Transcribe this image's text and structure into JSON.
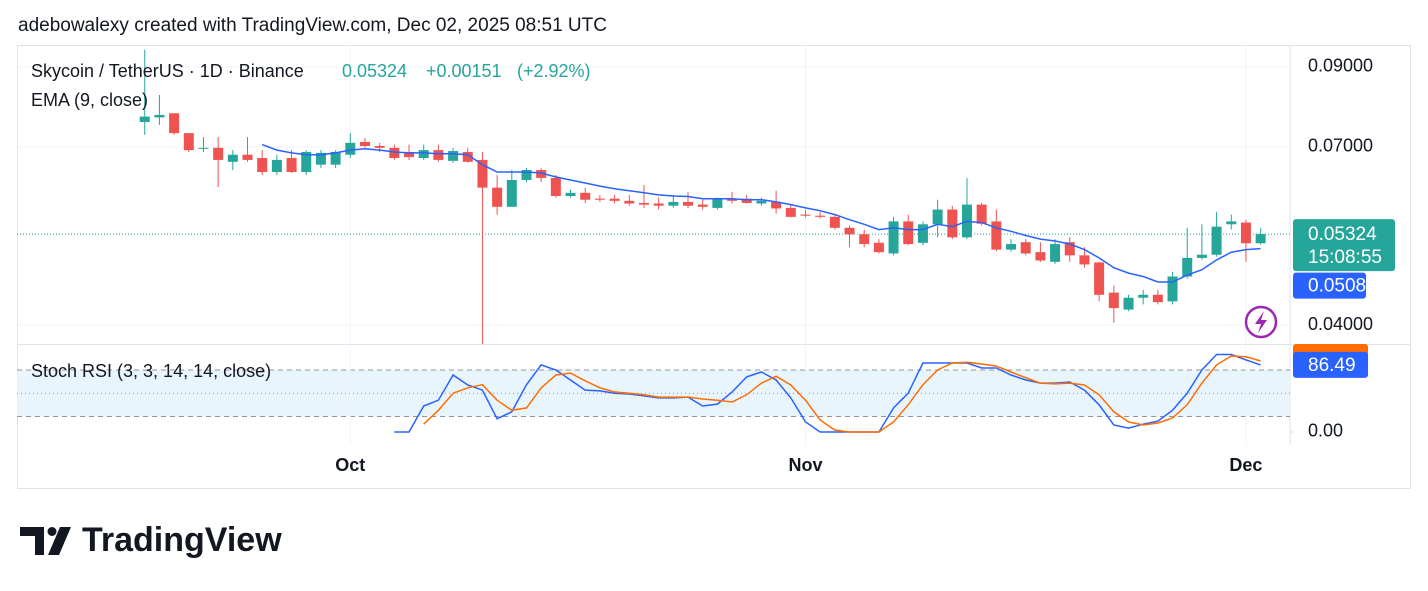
{
  "header": {
    "attribution": "adebowalexy created with TradingView.com, Dec 02, 2025 08:51 UTC"
  },
  "logo": {
    "text": "TradingView"
  },
  "chart_data": [
    {
      "type": "candlestick",
      "title": "Skycoin / TetherUS · 1D · Binance",
      "change": "+0.00151",
      "change_pct": "(+2.92%)",
      "countdown": "15:08:55",
      "log_scale": true,
      "grid": true,
      "up_color": "#26a69a",
      "down_color": "#ef5350",
      "xlim": [
        -8.7,
        78
      ],
      "ylim": [
        0.0377,
        0.0964
      ],
      "yticks": [
        {
          "value": 0.09,
          "label": "0.09000"
        },
        {
          "value": 0.07,
          "label": "0.07000"
        },
        {
          "value": 0.04,
          "label": "0.04000"
        }
      ],
      "candles": [
        [
          0.0757,
          0.095,
          0.0727,
          0.077
        ],
        [
          0.0768,
          0.0824,
          0.075,
          0.0774
        ],
        [
          0.0778,
          0.0778,
          0.0727,
          0.0731
        ],
        [
          0.0731,
          0.0731,
          0.0689,
          0.0693
        ],
        [
          0.0696,
          0.0722,
          0.0689,
          0.0698
        ],
        [
          0.0698,
          0.0722,
          0.0617,
          0.0672
        ],
        [
          0.0668,
          0.0693,
          0.0651,
          0.0683
        ],
        [
          0.0683,
          0.0722,
          0.0668,
          0.0672
        ],
        [
          0.0676,
          0.0693,
          0.0641,
          0.0647
        ],
        [
          0.0647,
          0.0683,
          0.0641,
          0.0672
        ],
        [
          0.0676,
          0.0693,
          0.0645,
          0.0647
        ],
        [
          0.0647,
          0.0693,
          0.0641,
          0.0689
        ],
        [
          0.0662,
          0.0693,
          0.0655,
          0.0687
        ],
        [
          0.0662,
          0.0693,
          0.0655,
          0.0689
        ],
        [
          0.0683,
          0.0731,
          0.0676,
          0.0709
        ],
        [
          0.0711,
          0.072,
          0.0698,
          0.0702
        ],
        [
          0.0702,
          0.0709,
          0.0689,
          0.0698
        ],
        [
          0.0698,
          0.0705,
          0.0672,
          0.0676
        ],
        [
          0.0689,
          0.0705,
          0.0672,
          0.0678
        ],
        [
          0.0676,
          0.0705,
          0.0672,
          0.0693
        ],
        [
          0.0693,
          0.0705,
          0.0668,
          0.0672
        ],
        [
          0.067,
          0.0698,
          0.0666,
          0.0691
        ],
        [
          0.0689,
          0.0698,
          0.0666,
          0.0668
        ],
        [
          0.0672,
          0.0689,
          0.0377,
          0.0616
        ],
        [
          0.0616,
          0.0641,
          0.0566,
          0.058
        ],
        [
          0.058,
          0.0651,
          0.058,
          0.0631
        ],
        [
          0.0631,
          0.0655,
          0.0627,
          0.0651
        ],
        [
          0.0651,
          0.0655,
          0.0627,
          0.0635
        ],
        [
          0.0635,
          0.0641,
          0.0597,
          0.06
        ],
        [
          0.06,
          0.0612,
          0.0597,
          0.0606
        ],
        [
          0.0606,
          0.0616,
          0.0587,
          0.0593
        ],
        [
          0.0595,
          0.0602,
          0.0589,
          0.0593
        ],
        [
          0.0595,
          0.0602,
          0.0586,
          0.0591
        ],
        [
          0.0591,
          0.0602,
          0.0582,
          0.0586
        ],
        [
          0.0587,
          0.0621,
          0.0578,
          0.0584
        ],
        [
          0.0586,
          0.0597,
          0.0575,
          0.0582
        ],
        [
          0.0582,
          0.0602,
          0.0578,
          0.0589
        ],
        [
          0.0589,
          0.0608,
          0.0578,
          0.0582
        ],
        [
          0.0584,
          0.0593,
          0.0575,
          0.058
        ],
        [
          0.0578,
          0.0597,
          0.0575,
          0.0595
        ],
        [
          0.0595,
          0.0608,
          0.0586,
          0.0591
        ],
        [
          0.0595,
          0.0602,
          0.0586,
          0.0587
        ],
        [
          0.0586,
          0.0597,
          0.0582,
          0.0591
        ],
        [
          0.0589,
          0.061,
          0.0568,
          0.0577
        ],
        [
          0.0578,
          0.0584,
          0.0561,
          0.0562
        ],
        [
          0.0566,
          0.0575,
          0.0561,
          0.0564
        ],
        [
          0.0564,
          0.0571,
          0.0559,
          0.0562
        ],
        [
          0.0562,
          0.0566,
          0.054,
          0.0543
        ],
        [
          0.0543,
          0.0547,
          0.0511,
          0.0532
        ],
        [
          0.0532,
          0.054,
          0.0511,
          0.0516
        ],
        [
          0.0518,
          0.0524,
          0.0501,
          0.0503
        ],
        [
          0.0501,
          0.0562,
          0.0498,
          0.0554
        ],
        [
          0.0554,
          0.0566,
          0.0514,
          0.0516
        ],
        [
          0.0518,
          0.0554,
          0.0514,
          0.0549
        ],
        [
          0.0549,
          0.0593,
          0.0527,
          0.0575
        ],
        [
          0.0575,
          0.0582,
          0.0524,
          0.0527
        ],
        [
          0.0527,
          0.0635,
          0.0524,
          0.0584
        ],
        [
          0.0584,
          0.0587,
          0.0547,
          0.055
        ],
        [
          0.0554,
          0.0575,
          0.0504,
          0.0507
        ],
        [
          0.0507,
          0.0524,
          0.0504,
          0.0516
        ],
        [
          0.0519,
          0.0524,
          0.0498,
          0.0501
        ],
        [
          0.0503,
          0.0519,
          0.0488,
          0.049
        ],
        [
          0.0488,
          0.0524,
          0.0485,
          0.0516
        ],
        [
          0.0519,
          0.0527,
          0.0488,
          0.0498
        ],
        [
          0.0498,
          0.0511,
          0.0479,
          0.0484
        ],
        [
          0.0487,
          0.0488,
          0.0431,
          0.044
        ],
        [
          0.0443,
          0.0453,
          0.0403,
          0.0422
        ],
        [
          0.042,
          0.044,
          0.0418,
          0.0436
        ],
        [
          0.0436,
          0.0447,
          0.0427,
          0.044
        ],
        [
          0.044,
          0.0447,
          0.0427,
          0.043
        ],
        [
          0.0431,
          0.0473,
          0.0427,
          0.0466
        ],
        [
          0.0466,
          0.0543,
          0.0463,
          0.0494
        ],
        [
          0.0494,
          0.0549,
          0.0491,
          0.0499
        ],
        [
          0.0499,
          0.0571,
          0.0496,
          0.0545
        ],
        [
          0.0549,
          0.0566,
          0.054,
          0.0554
        ],
        [
          0.0552,
          0.0557,
          0.0488,
          0.05173
        ],
        [
          0.05173,
          0.0543,
          0.0515,
          0.05324
        ]
      ],
      "ema": {
        "label": "EMA (9, close)",
        "color": "#2962ff",
        "values": [
          null,
          null,
          null,
          null,
          null,
          null,
          null,
          null,
          0.0705,
          0.0693,
          0.0687,
          0.0683,
          0.0683,
          0.0687,
          0.0693,
          0.0696,
          0.0693,
          0.0689,
          0.0687,
          0.0687,
          0.0685,
          0.0685,
          0.0683,
          0.0662,
          0.0647,
          0.0647,
          0.0647,
          0.0645,
          0.0637,
          0.0631,
          0.0625,
          0.0619,
          0.0614,
          0.061,
          0.0606,
          0.0602,
          0.06,
          0.0599,
          0.0595,
          0.0595,
          0.0595,
          0.0593,
          0.0593,
          0.0589,
          0.0584,
          0.0578,
          0.0573,
          0.0566,
          0.0557,
          0.0549,
          0.054,
          0.0543,
          0.054,
          0.054,
          0.0549,
          0.0545,
          0.0554,
          0.0552,
          0.0543,
          0.0537,
          0.053,
          0.0524,
          0.0521,
          0.0516,
          0.0507,
          0.0494,
          0.0479,
          0.0471,
          0.0466,
          0.0458,
          0.0458,
          0.0468,
          0.0476,
          0.0491,
          0.0503,
          0.0507,
          0.05087
        ]
      }
    },
    {
      "type": "line",
      "title": "Stoch RSI (3, 3, 14, 14, close)",
      "xlim": [
        -8.7,
        78
      ],
      "ylim": [
        -16.8,
        113.5
      ],
      "yticks": [
        {
          "value": 0,
          "label": "0.00"
        }
      ],
      "bands": [
        20,
        50,
        80
      ],
      "band_color": "#e3f2fd",
      "xticks": [
        {
          "value": 14,
          "label": "Oct"
        },
        {
          "value": 45,
          "label": "Nov"
        },
        {
          "value": 75,
          "label": "Dec"
        }
      ],
      "series": [
        {
          "color": "#2962ff",
          "values": [
            null,
            null,
            null,
            null,
            null,
            null,
            null,
            null,
            null,
            null,
            null,
            null,
            null,
            null,
            null,
            null,
            null,
            0,
            0,
            33.5,
            41,
            73.5,
            60.6,
            54,
            17,
            26,
            61,
            86.5,
            80,
            67,
            54,
            53,
            50,
            49,
            46.5,
            44,
            44,
            45,
            33.5,
            36,
            51.6,
            71,
            77.4,
            67,
            44,
            13,
            0,
            0,
            0,
            0,
            0,
            31,
            50,
            89,
            89,
            89,
            89,
            82.6,
            82.6,
            73.5,
            67,
            63,
            63,
            64.5,
            54,
            35,
            9,
            5,
            10,
            14,
            28,
            50,
            80,
            100,
            100,
            93,
            86.49
          ]
        },
        {
          "color": "#ff6d00",
          "values": [
            null,
            null,
            null,
            null,
            null,
            null,
            null,
            null,
            null,
            null,
            null,
            null,
            null,
            null,
            null,
            null,
            null,
            null,
            null,
            10,
            28,
            50,
            57,
            61,
            41,
            28,
            31,
            57,
            73.5,
            76,
            66,
            57,
            51.6,
            50,
            48,
            45,
            45,
            45,
            42.6,
            41,
            38.7,
            48,
            63,
            72,
            60.6,
            41,
            15.5,
            2.6,
            0,
            0,
            0,
            13,
            35,
            61,
            80,
            89,
            90,
            87.7,
            85,
            77.4,
            70,
            63,
            62,
            63,
            60.6,
            48,
            26,
            13,
            9,
            11.6,
            18,
            35,
            63,
            86.5,
            98,
            97,
            91.6
          ]
        }
      ]
    }
  ]
}
